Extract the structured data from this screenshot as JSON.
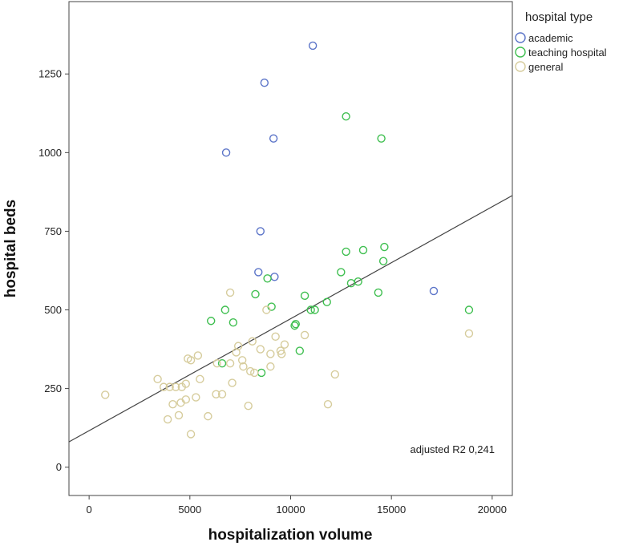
{
  "chart_data": {
    "type": "scatter",
    "xlabel": "hospitalization volume",
    "ylabel": "hospital beds",
    "xlim": [
      -1000,
      21000
    ],
    "ylim": [
      -90,
      1480
    ],
    "xticks": [
      0,
      5000,
      10000,
      15000,
      20000
    ],
    "yticks": [
      0,
      250,
      500,
      750,
      1000,
      1250
    ],
    "grid": false,
    "legend": {
      "title": "hospital type",
      "placement": "top-right, outside plot"
    },
    "annotation": "adjusted R2 0,241",
    "fit_line": {
      "intercept": 116,
      "slope": 0.0356
    },
    "series": [
      {
        "name": "academic",
        "color": "#5b74c8",
        "points": [
          [
            11100,
            1340
          ],
          [
            8700,
            1222
          ],
          [
            9150,
            1045
          ],
          [
            6800,
            1000
          ],
          [
            8500,
            750
          ],
          [
            8400,
            620
          ],
          [
            9200,
            605
          ],
          [
            17100,
            560
          ]
        ]
      },
      {
        "name": "teaching hospital",
        "color": "#3fbf50",
        "points": [
          [
            12750,
            1115
          ],
          [
            14500,
            1045
          ],
          [
            14650,
            700
          ],
          [
            13600,
            690
          ],
          [
            12750,
            685
          ],
          [
            14600,
            655
          ],
          [
            12500,
            620
          ],
          [
            8850,
            600
          ],
          [
            13350,
            590
          ],
          [
            13000,
            585
          ],
          [
            14350,
            555
          ],
          [
            8250,
            550
          ],
          [
            10700,
            545
          ],
          [
            11800,
            525
          ],
          [
            9050,
            510
          ],
          [
            6750,
            500
          ],
          [
            11000,
            500
          ],
          [
            11200,
            500
          ],
          [
            18850,
            500
          ],
          [
            6050,
            465
          ],
          [
            7150,
            460
          ],
          [
            10250,
            455
          ],
          [
            10200,
            450
          ],
          [
            10450,
            370
          ],
          [
            6600,
            330
          ],
          [
            8550,
            300
          ]
        ]
      },
      {
        "name": "general",
        "color": "#d6cc9c",
        "points": [
          [
            7000,
            555
          ],
          [
            8800,
            500
          ],
          [
            18850,
            425
          ],
          [
            10700,
            420
          ],
          [
            9250,
            415
          ],
          [
            8100,
            400
          ],
          [
            9700,
            390
          ],
          [
            7400,
            385
          ],
          [
            8500,
            375
          ],
          [
            9500,
            370
          ],
          [
            7300,
            365
          ],
          [
            9000,
            360
          ],
          [
            9550,
            360
          ],
          [
            5400,
            355
          ],
          [
            4900,
            345
          ],
          [
            5050,
            340
          ],
          [
            7600,
            340
          ],
          [
            6350,
            330
          ],
          [
            7000,
            330
          ],
          [
            7650,
            320
          ],
          [
            9000,
            320
          ],
          [
            8000,
            305
          ],
          [
            8200,
            300
          ],
          [
            12200,
            295
          ],
          [
            3400,
            280
          ],
          [
            5500,
            280
          ],
          [
            7100,
            268
          ],
          [
            4800,
            265
          ],
          [
            3700,
            255
          ],
          [
            4000,
            255
          ],
          [
            4300,
            255
          ],
          [
            4600,
            255
          ],
          [
            6300,
            232
          ],
          [
            6600,
            232
          ],
          [
            800,
            230
          ],
          [
            5300,
            222
          ],
          [
            4800,
            215
          ],
          [
            4150,
            200
          ],
          [
            4550,
            205
          ],
          [
            7900,
            195
          ],
          [
            11850,
            200
          ],
          [
            4450,
            165
          ],
          [
            5900,
            162
          ],
          [
            3900,
            152
          ],
          [
            5050,
            105
          ]
        ]
      }
    ]
  }
}
